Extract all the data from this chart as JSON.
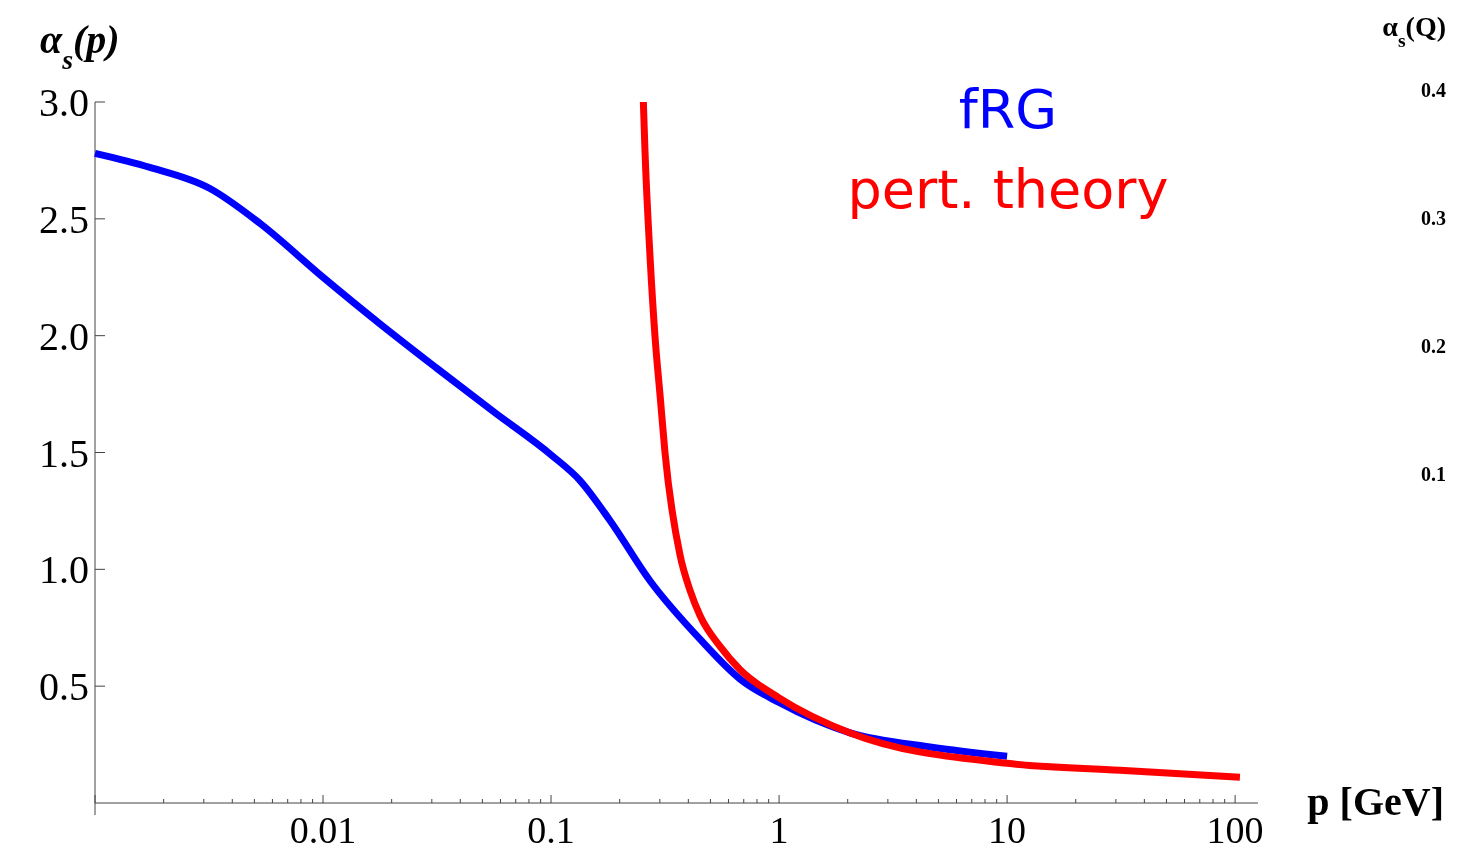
{
  "chart_data": {
    "type": "line",
    "xlabel": "p [GeV]",
    "ylabel": "α$_{s}$(p)",
    "y2label": "α$_{s}$(Q)",
    "log": "x",
    "xlim": [
      0.001,
      126
    ],
    "xticks": [
      {
        "value": 0.001,
        "label": null
      },
      0.01,
      0.1,
      1,
      10,
      100
    ],
    "ylim": [
      0,
      3.0
    ],
    "yticks": [
      {
        "value": 0.5,
        "label": "0.5"
      },
      {
        "value": 1,
        "label": "1.0"
      },
      {
        "value": 1.5,
        "label": "1.5"
      },
      {
        "value": 2,
        "label": "2.0"
      },
      {
        "value": 2.5,
        "label": "2.5"
      },
      {
        "value": 3,
        "label": "3.0"
      }
    ],
    "y2lim": [
      -0.157,
      0.4
    ],
    "y2ticks": [
      0.1,
      0.2,
      0.3,
      0.4
    ],
    "grid": false,
    "legend": "top right",
    "marker": "none",
    "line_style": "solid",
    "series": [
      {
        "name": "fRG",
        "color": "#0000ff",
        "x": [
          0.001,
          0.00174,
          0.00319,
          0.0053,
          0.01,
          0.0178,
          0.0316,
          0.0568,
          0.1,
          0.134,
          0.181,
          0.272,
          0.451,
          0.675,
          1,
          2.05,
          4.59,
          10
        ],
        "values": [
          2.78,
          2.72,
          2.63,
          2.48,
          2.25,
          2.05,
          1.86,
          1.67,
          1.49,
          1.38,
          1.21,
          0.95,
          0.7,
          0.53,
          0.43,
          0.3,
          0.24,
          0.2
        ]
      },
      {
        "name": "pert. theory",
        "color": "#ff0000",
        "x": [
          0.254,
          0.258,
          0.272,
          0.286,
          0.301,
          0.316,
          0.368,
          0.407,
          0.451,
          0.551,
          0.675,
          1,
          2.05,
          10,
          31.3,
          105
        ],
        "values": [
          3.0,
          2.8,
          2.33,
          1.99,
          1.74,
          1.5,
          1.06,
          0.91,
          0.8,
          0.67,
          0.57,
          0.45,
          0.3,
          0.17,
          0.14,
          0.11
        ]
      }
    ]
  }
}
